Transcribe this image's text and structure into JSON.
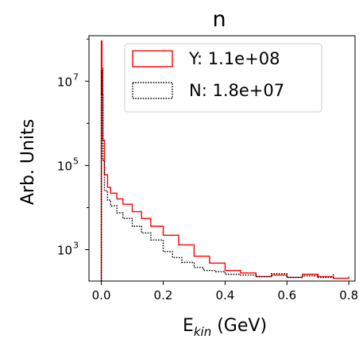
{
  "chart_data": {
    "type": "line",
    "title": "n",
    "xlabel": "E",
    "xlabel_subscript": "kin",
    "xlabel_unit": " (GeV)",
    "ylabel": "Arb. Units",
    "yscale": "log",
    "xlim": [
      -0.04,
      0.82
    ],
    "ylim": [
      180,
      120000000
    ],
    "x_ticks": [
      0.0,
      0.2,
      0.4,
      0.6,
      0.8
    ],
    "x_tick_labels": [
      "0.0",
      "0.2",
      "0.4",
      "0.6",
      "0.8"
    ],
    "y_ticks": [
      1000,
      100000,
      10000000
    ],
    "y_tick_labels": [
      {
        "base": "10",
        "exp": "3"
      },
      {
        "base": "10",
        "exp": "5"
      },
      {
        "base": "10",
        "exp": "7"
      }
    ],
    "legend_position": "top-right",
    "series": [
      {
        "name": "Y: 1.1e+08",
        "color": "#ff0000",
        "style": "solid",
        "x": [
          0.0,
          0.002,
          0.005,
          0.01,
          0.02,
          0.03,
          0.05,
          0.07,
          0.1,
          0.13,
          0.16,
          0.2,
          0.25,
          0.3,
          0.35,
          0.4,
          0.45,
          0.5,
          0.55,
          0.6,
          0.65,
          0.7,
          0.75,
          0.8
        ],
        "y": [
          90000000,
          20000000,
          400000,
          60000,
          30000,
          22000,
          16000,
          12000,
          8000,
          5500,
          3600,
          2200,
          1300,
          700,
          480,
          320,
          280,
          230,
          250,
          220,
          260,
          230,
          210,
          230
        ]
      },
      {
        "name": "N: 1.8e+07",
        "color": "#000000",
        "style": "dotted",
        "x": [
          0.0,
          0.002,
          0.005,
          0.01,
          0.02,
          0.03,
          0.05,
          0.07,
          0.1,
          0.13,
          0.16,
          0.2,
          0.23,
          0.26,
          0.3,
          0.33,
          0.37,
          0.4,
          0.45,
          0.5,
          0.55,
          0.6,
          0.65,
          0.7,
          0.75
        ],
        "y": [
          18000000,
          5000000,
          130000,
          25000,
          15000,
          11000,
          7500,
          5500,
          3600,
          2500,
          1700,
          900,
          650,
          500,
          380,
          320,
          300,
          260,
          250,
          230,
          270,
          220,
          240,
          220,
          260
        ]
      }
    ]
  }
}
